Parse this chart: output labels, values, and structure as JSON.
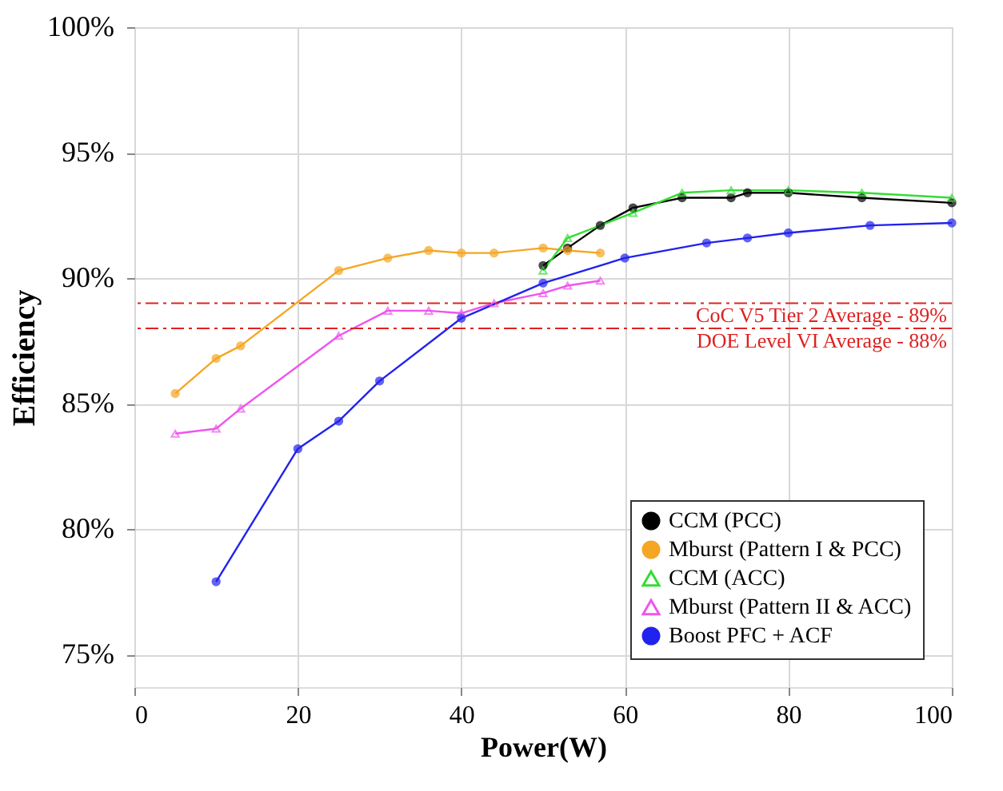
{
  "chart_data": {
    "type": "line",
    "xlabel": "Power(W)",
    "ylabel": "Efficiency",
    "xlim": [
      0,
      100
    ],
    "xticks": [
      0,
      20,
      40,
      60,
      80,
      100
    ],
    "ylim": [
      73.7,
      100
    ],
    "yticks": [
      {
        "value": 75,
        "label": "75%"
      },
      {
        "value": 80,
        "label": "80%"
      },
      {
        "value": 85,
        "label": "85%"
      },
      {
        "value": 90,
        "label": "90%"
      },
      {
        "value": 95,
        "label": "95%"
      },
      {
        "value": 100,
        "label": "100%"
      }
    ],
    "grid": true,
    "legend": "bottom right",
    "line_style": "solid",
    "series": [
      {
        "name": "CCM (PCC)",
        "color": "#000000",
        "marker": "circle",
        "x": [
          50,
          53,
          57,
          61,
          67,
          73,
          75,
          80,
          89,
          100
        ],
        "values": [
          90.5,
          91.2,
          92.1,
          92.8,
          93.2,
          93.2,
          93.4,
          93.4,
          93.2,
          93.0
        ]
      },
      {
        "name": "Mburst (Pattern I & PCC)",
        "color": "#f5a623",
        "marker": "circle",
        "x": [
          5,
          10,
          13,
          25,
          31,
          36,
          40,
          44,
          50,
          53,
          57
        ],
        "values": [
          85.4,
          86.8,
          87.3,
          90.3,
          90.8,
          91.1,
          91.0,
          91.0,
          91.2,
          91.1,
          91.0
        ]
      },
      {
        "name": "CCM (ACC)",
        "color": "#33dd33",
        "marker": "triangle",
        "x": [
          50,
          53,
          61,
          67,
          73,
          80,
          89,
          100
        ],
        "values": [
          90.3,
          91.6,
          92.6,
          93.4,
          93.5,
          93.5,
          93.4,
          93.2
        ]
      },
      {
        "name": "Mburst (Pattern II & ACC)",
        "color": "#ee55ee",
        "marker": "triangle",
        "x": [
          5,
          10,
          13,
          25,
          31,
          36,
          40,
          44,
          50,
          53,
          57
        ],
        "values": [
          83.8,
          84.0,
          84.8,
          87.7,
          88.7,
          88.7,
          88.6,
          89.0,
          89.4,
          89.7,
          89.9
        ]
      },
      {
        "name": "Boost PFC + ACF",
        "color": "#2222ee",
        "marker": "circle",
        "x": [
          10,
          20,
          25,
          30,
          40,
          50,
          60,
          70,
          75,
          80,
          90,
          100
        ],
        "values": [
          77.9,
          83.2,
          84.3,
          85.9,
          88.4,
          89.8,
          90.8,
          91.4,
          91.6,
          91.8,
          92.1,
          92.2
        ]
      }
    ],
    "ref_lines": [
      {
        "axis": "y",
        "value": 89,
        "label": "CoC V5 Tier 2 Average - 89%",
        "color": "#dd2222",
        "line_style": "dashdot"
      },
      {
        "axis": "y",
        "value": 88,
        "label": "DOE Level VI Average - 88%",
        "color": "#dd2222",
        "line_style": "dashdot"
      }
    ]
  }
}
